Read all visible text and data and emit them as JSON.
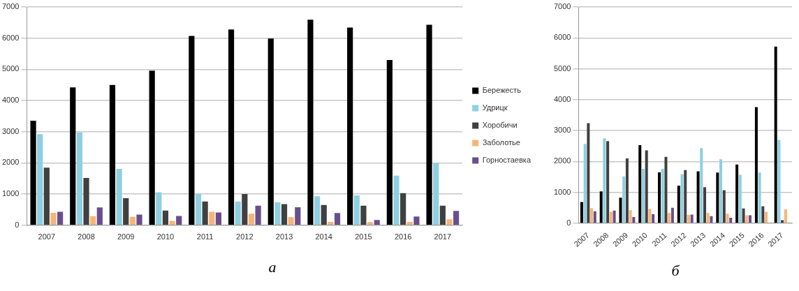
{
  "chart_data": [
    {
      "type": "bar",
      "categories": [
        "2007",
        "2008",
        "2009",
        "2010",
        "2011",
        "2012",
        "2013",
        "2014",
        "2015",
        "2016",
        "2017"
      ],
      "series": [
        {
          "name": "Бережесть",
          "color": "#000000",
          "values": [
            3350,
            4420,
            4500,
            4960,
            6070,
            6280,
            5990,
            6590,
            6340,
            5300,
            6430
          ]
        },
        {
          "name": "Удрицк",
          "color": "#8ecfe0",
          "values": [
            2920,
            2980,
            1810,
            1060,
            1000,
            760,
            740,
            930,
            960,
            1590,
            2000
          ]
        },
        {
          "name": "Хоробичи",
          "color": "#404040",
          "values": [
            1850,
            1520,
            870,
            470,
            760,
            1000,
            680,
            650,
            630,
            1030,
            630
          ]
        },
        {
          "name": "Заболотье",
          "color": "#f5b578",
          "values": [
            400,
            290,
            270,
            140,
            430,
            370,
            260,
            110,
            100,
            110,
            190
          ]
        },
        {
          "name": "Горностаевка",
          "color": "#6a4e8c",
          "values": [
            430,
            570,
            340,
            300,
            410,
            630,
            580,
            390,
            170,
            280,
            460
          ]
        }
      ],
      "ylim": [
        0,
        7000
      ],
      "yticks": [
        0,
        1000,
        2000,
        3000,
        4000,
        5000,
        6000,
        7000
      ],
      "grid": "y",
      "legend": "right",
      "annotations": [
        "а"
      ]
    },
    {
      "type": "bar",
      "categories": [
        "2007",
        "2008",
        "2009",
        "2010",
        "2011",
        "2012",
        "2013",
        "2014",
        "2015",
        "2016",
        "2017"
      ],
      "series": [
        {
          "color": "#000000",
          "values": [
            690,
            1030,
            830,
            2530,
            1650,
            1220,
            1680,
            1640,
            1900,
            3760,
            5720
          ]
        },
        {
          "color": "#8ecfe0",
          "values": [
            2570,
            2750,
            1520,
            1760,
            1760,
            1590,
            2430,
            2070,
            1570,
            1640,
            2700
          ]
        },
        {
          "color": "#404040",
          "values": [
            3240,
            2660,
            2100,
            2360,
            2150,
            1720,
            1170,
            1070,
            480,
            550,
            100
          ]
        },
        {
          "color": "#f5b578",
          "values": [
            490,
            370,
            420,
            460,
            330,
            270,
            330,
            310,
            260,
            370,
            450
          ]
        },
        {
          "color": "#6a4e8c",
          "values": [
            390,
            410,
            200,
            300,
            500,
            280,
            230,
            180,
            260,
            null,
            null
          ]
        }
      ],
      "ylim": [
        0,
        7000
      ],
      "yticks": [
        0,
        1000,
        2000,
        3000,
        4000,
        5000,
        6000,
        7000
      ],
      "grid": "y",
      "annotations": [
        "б"
      ]
    }
  ]
}
